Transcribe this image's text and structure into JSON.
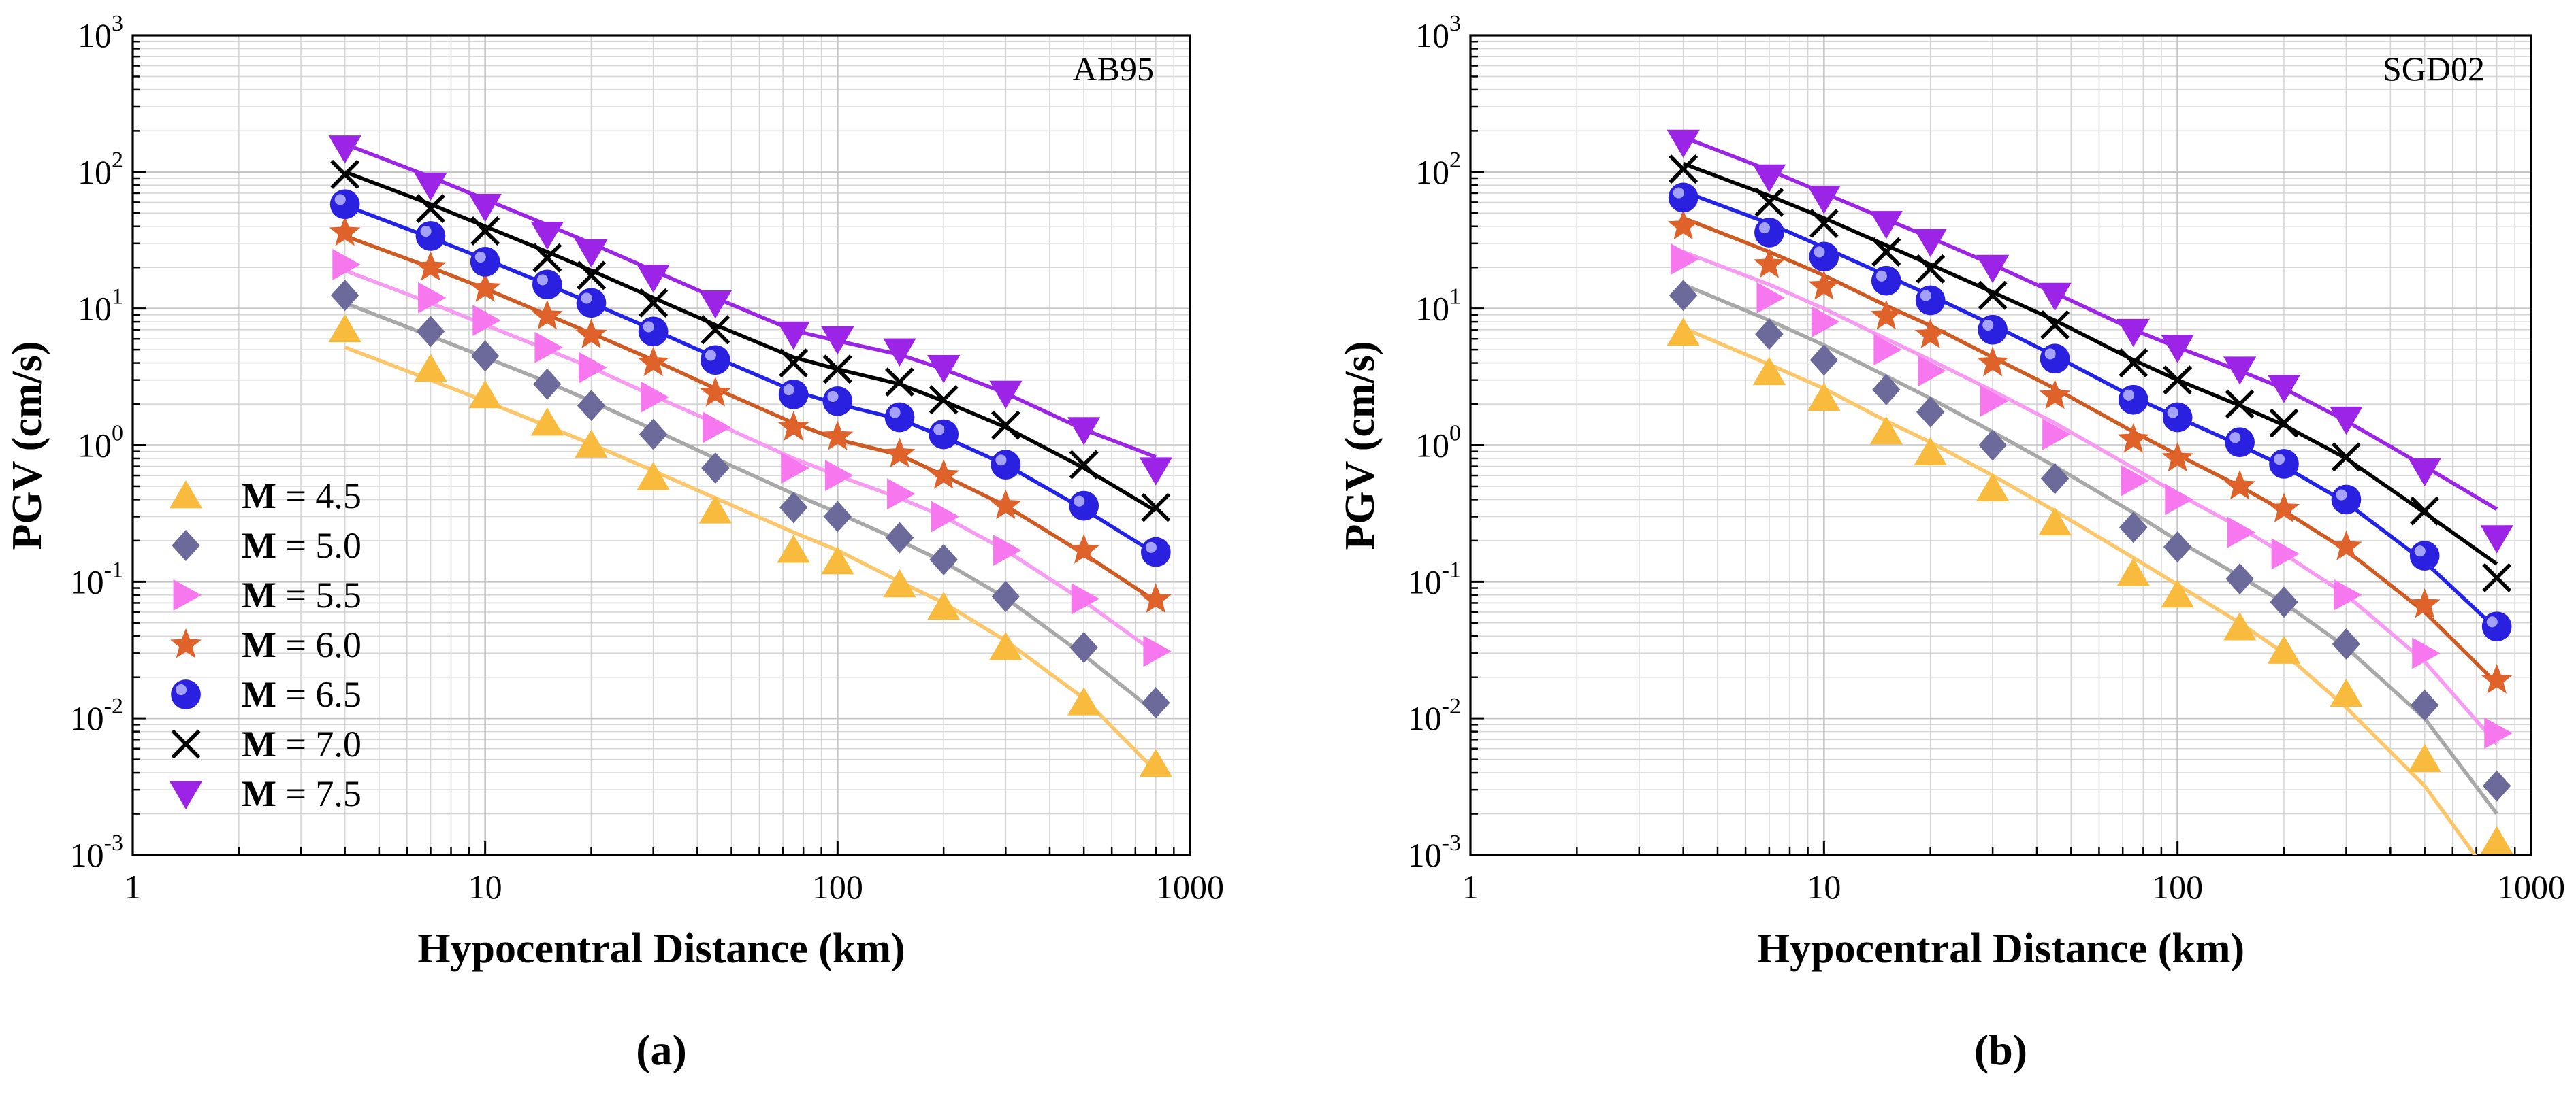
{
  "chart_data": [
    {
      "type": "scatter",
      "panel_label": "(a)",
      "corner_label": "AB95",
      "xlabel": "Hypocentral Distance (km)",
      "ylabel": "PGV (cm/s)",
      "xscale": "log",
      "yscale": "log",
      "xlim": [
        1,
        1000
      ],
      "ylim": [
        0.001,
        1000
      ],
      "x_ticks": [
        "1",
        "10",
        "100",
        "1000"
      ],
      "y_ticks": [
        {
          "base": "10",
          "exp": "-3"
        },
        {
          "base": "10",
          "exp": "-2"
        },
        {
          "base": "10",
          "exp": "-1"
        },
        {
          "base": "10",
          "exp": "0"
        },
        {
          "base": "10",
          "exp": "1"
        },
        {
          "base": "10",
          "exp": "2"
        },
        {
          "base": "10",
          "exp": "3"
        }
      ],
      "grid": true,
      "legend": "bottom-left",
      "x": [
        4,
        7,
        10,
        15,
        20,
        30,
        45,
        75,
        100,
        150,
        200,
        300,
        500,
        800
      ],
      "series": [
        {
          "legend_prefix": "M",
          "legend_value": " = 4.5",
          "marker": "triangle-up",
          "color": "#f8bb3d",
          "line_color": "#fbc76a",
          "points": [
            7.0,
            3.6,
            2.3,
            1.45,
            1.0,
            0.58,
            0.33,
            0.17,
            0.14,
            0.095,
            0.065,
            0.033,
            0.013,
            0.0046
          ],
          "fit": [
            5.2,
            3.0,
            2.1,
            1.38,
            1.02,
            0.65,
            0.41,
            0.23,
            0.17,
            0.1,
            0.07,
            0.037,
            0.014,
            0.0041
          ]
        },
        {
          "legend_prefix": "M",
          "legend_value": " = 5.0",
          "marker": "diamond",
          "color": "#6b6a9a",
          "line_color": "#a8a8a8",
          "points": [
            12.5,
            6.8,
            4.5,
            2.8,
            1.95,
            1.2,
            0.68,
            0.35,
            0.3,
            0.21,
            0.145,
            0.078,
            0.033,
            0.013
          ],
          "fit": [
            11.0,
            6.3,
            4.4,
            2.9,
            2.1,
            1.3,
            0.8,
            0.44,
            0.32,
            0.2,
            0.14,
            0.076,
            0.029,
            0.011
          ]
        },
        {
          "legend_prefix": "M",
          "legend_value": " = 5.5",
          "marker": "triangle-right",
          "color": "#f777ee",
          "line_color": "#f79af1",
          "points": [
            21,
            12,
            8.2,
            5.2,
            3.7,
            2.25,
            1.35,
            0.68,
            0.6,
            0.44,
            0.3,
            0.17,
            0.075,
            0.031
          ],
          "fit": [
            19,
            11,
            7.6,
            5.0,
            3.7,
            2.3,
            1.45,
            0.8,
            0.6,
            0.41,
            0.3,
            0.17,
            0.072,
            0.03
          ]
        },
        {
          "legend_prefix": "M",
          "legend_value": " = 6.0",
          "marker": "star",
          "color": "#e0622b",
          "line_color": "#cf5a22",
          "points": [
            36,
            20,
            14,
            8.8,
            6.4,
            4.0,
            2.4,
            1.35,
            1.15,
            0.86,
            0.6,
            0.36,
            0.17,
            0.074
          ],
          "fit": [
            34,
            20,
            14,
            9.0,
            6.6,
            4.2,
            2.6,
            1.45,
            1.1,
            0.85,
            0.6,
            0.36,
            0.16,
            0.072
          ]
        },
        {
          "legend_prefix": "M",
          "legend_value": " = 6.5",
          "marker": "sphere",
          "color": "#2a21e0",
          "line_color": "#2222e8",
          "points": [
            58,
            34,
            22,
            15,
            11,
            6.8,
            4.2,
            2.35,
            2.1,
            1.6,
            1.2,
            0.72,
            0.36,
            0.165
          ],
          "fit": [
            57,
            33,
            23,
            15,
            11,
            7.0,
            4.4,
            2.5,
            2.0,
            1.55,
            1.15,
            0.72,
            0.34,
            0.16
          ]
        },
        {
          "legend_prefix": "M",
          "legend_value": " = 7.0",
          "marker": "x",
          "color": "#000000",
          "line_color": "#000000",
          "points": [
            96,
            54,
            37,
            23.5,
            17.5,
            11,
            7.0,
            4.0,
            3.6,
            2.9,
            2.15,
            1.4,
            0.72,
            0.35
          ],
          "fit": [
            100,
            58,
            40,
            26,
            19,
            12,
            7.6,
            4.4,
            3.6,
            2.8,
            2.1,
            1.35,
            0.68,
            0.33
          ]
        },
        {
          "legend_prefix": "M",
          "legend_value": " = 7.5",
          "marker": "triangle-down",
          "color": "#9b24e6",
          "line_color": "#9b24e6",
          "points": [
            150,
            80,
            56,
            35,
            26,
            17,
            11,
            6.5,
            6.0,
            4.9,
            3.7,
            2.4,
            1.3,
            0.66
          ],
          "fit": [
            160,
            92,
            63,
            41,
            30,
            19,
            12,
            6.9,
            5.8,
            4.6,
            3.6,
            2.4,
            1.3,
            0.82
          ]
        }
      ]
    },
    {
      "type": "scatter",
      "panel_label": "(b)",
      "corner_label": "SGD02",
      "xlabel": "Hypocentral Distance (km)",
      "ylabel": "PGV (cm/s)",
      "xscale": "log",
      "yscale": "log",
      "xlim": [
        1,
        1000
      ],
      "ylim": [
        0.001,
        1000
      ],
      "x_ticks": [
        "1",
        "10",
        "100",
        "1000"
      ],
      "y_ticks": [
        {
          "base": "10",
          "exp": "-3"
        },
        {
          "base": "10",
          "exp": "-2"
        },
        {
          "base": "10",
          "exp": "-1"
        },
        {
          "base": "10",
          "exp": "0"
        },
        {
          "base": "10",
          "exp": "1"
        },
        {
          "base": "10",
          "exp": "2"
        },
        {
          "base": "10",
          "exp": "3"
        }
      ],
      "grid": true,
      "x": [
        4,
        7,
        10,
        15,
        20,
        30,
        45,
        75,
        100,
        150,
        200,
        300,
        500,
        800
      ],
      "series": [
        {
          "marker": "triangle-up",
          "color": "#f8bb3d",
          "line_color": "#fbc76a",
          "points": [
            6.6,
            3.4,
            2.2,
            1.25,
            0.88,
            0.48,
            0.27,
            0.115,
            0.08,
            0.046,
            0.031,
            0.015,
            0.005,
            0.00125
          ],
          "fit": [
            7.2,
            3.9,
            2.6,
            1.5,
            1.05,
            0.6,
            0.33,
            0.15,
            0.095,
            0.05,
            0.03,
            0.012,
            0.0032,
            0.0006
          ]
        },
        {
          "marker": "diamond",
          "color": "#6b6a9a",
          "line_color": "#a8a8a8",
          "points": [
            12.5,
            6.5,
            4.2,
            2.55,
            1.75,
            1.0,
            0.57,
            0.25,
            0.18,
            0.105,
            0.071,
            0.035,
            0.0125,
            0.0032
          ],
          "fit": [
            15,
            8.2,
            5.4,
            3.2,
            2.2,
            1.25,
            0.7,
            0.32,
            0.2,
            0.11,
            0.07,
            0.033,
            0.01,
            0.002
          ]
        },
        {
          "marker": "triangle-right",
          "color": "#f777ee",
          "line_color": "#f79af1",
          "points": [
            23,
            12,
            8.0,
            5.0,
            3.5,
            2.1,
            1.2,
            0.55,
            0.4,
            0.23,
            0.16,
            0.08,
            0.03,
            0.0078
          ],
          "fit": [
            26,
            15,
            10,
            6.0,
            4.2,
            2.5,
            1.45,
            0.68,
            0.44,
            0.25,
            0.16,
            0.08,
            0.026,
            0.0065
          ]
        },
        {
          "marker": "star",
          "color": "#e0622b",
          "line_color": "#cf5a22",
          "points": [
            40,
            21,
            14.5,
            8.8,
            6.4,
            4.0,
            2.3,
            1.1,
            0.8,
            0.5,
            0.34,
            0.18,
            0.068,
            0.019
          ],
          "fit": [
            46,
            26,
            17.5,
            10.5,
            7.5,
            4.4,
            2.6,
            1.25,
            0.85,
            0.5,
            0.33,
            0.17,
            0.06,
            0.018
          ]
        },
        {
          "marker": "sphere",
          "color": "#2a21e0",
          "line_color": "#2222e8",
          "points": [
            65,
            36,
            24,
            16,
            11.5,
            7.0,
            4.3,
            2.15,
            1.6,
            1.05,
            0.73,
            0.4,
            0.155,
            0.047
          ],
          "fit": [
            72,
            42,
            28,
            17.5,
            12.5,
            7.6,
            4.5,
            2.25,
            1.6,
            1.0,
            0.7,
            0.38,
            0.14,
            0.045
          ]
        },
        {
          "marker": "x",
          "color": "#000000",
          "line_color": "#000000",
          "points": [
            105,
            60,
            42,
            26,
            19.5,
            12.5,
            7.6,
            4.0,
            3.0,
            2.0,
            1.45,
            0.82,
            0.33,
            0.107
          ],
          "fit": [
            115,
            67,
            46,
            29,
            21,
            13.2,
            8.2,
            4.2,
            3.0,
            1.95,
            1.4,
            0.8,
            0.32,
            0.135
          ]
        },
        {
          "marker": "triangle-down",
          "color": "#9b24e6",
          "line_color": "#9b24e6",
          "points": [
            165,
            92,
            64,
            42,
            31,
            20,
            12.5,
            6.8,
            5.2,
            3.6,
            2.65,
            1.55,
            0.65,
            0.21
          ],
          "fit": [
            180,
            103,
            70,
            45,
            33,
            21,
            13,
            7.0,
            5.2,
            3.5,
            2.6,
            1.5,
            0.7,
            0.34
          ]
        }
      ]
    }
  ]
}
